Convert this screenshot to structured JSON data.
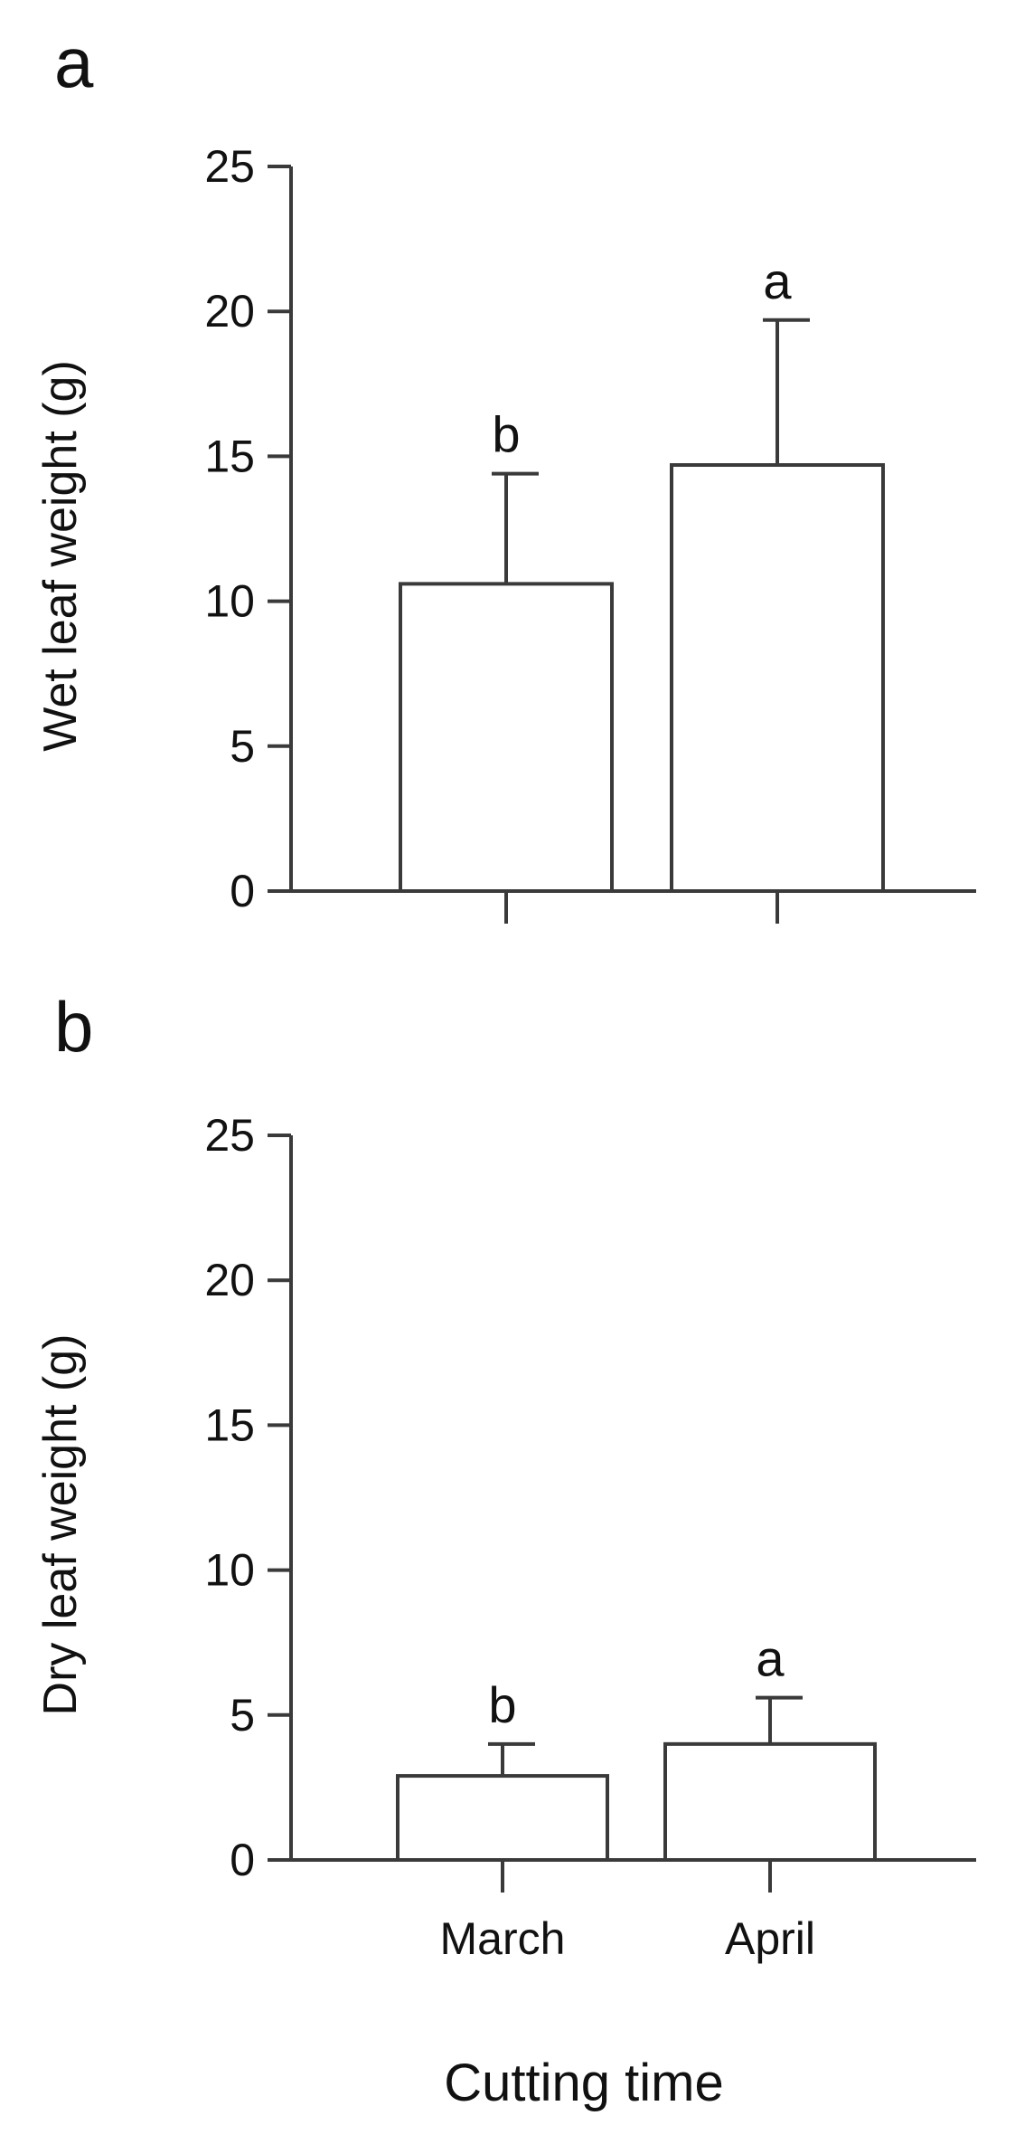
{
  "chart_data": [
    {
      "type": "bar",
      "panel_label": "a",
      "categories": [
        "March",
        "April"
      ],
      "values": [
        10.6,
        14.7
      ],
      "error_bars": [
        3.8,
        5.0
      ],
      "significance": [
        "b",
        "a"
      ],
      "ylabel": "Wet leaf weight (g)",
      "ylim": [
        0,
        25
      ],
      "yticks": [
        "0",
        "5",
        "10",
        "15",
        "20",
        "25"
      ],
      "show_category_labels": false,
      "grid": false
    },
    {
      "type": "bar",
      "panel_label": "b",
      "categories": [
        "March",
        "April"
      ],
      "values": [
        2.9,
        4.0
      ],
      "error_bars": [
        1.1,
        1.6
      ],
      "significance": [
        "b",
        "a"
      ],
      "ylabel": "Dry leaf weight (g)",
      "ylim": [
        0,
        25
      ],
      "yticks": [
        "0",
        "5",
        "10",
        "15",
        "20",
        "25"
      ],
      "show_category_labels": true,
      "grid": false
    }
  ],
  "xlabel": "Cutting time"
}
